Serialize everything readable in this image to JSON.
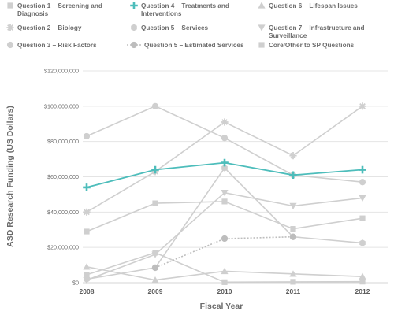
{
  "chart_data": {
    "type": "line",
    "title": "",
    "xlabel": "Fiscal Year",
    "ylabel": "ASD Research Funding (US Dollars)",
    "x": [
      "2008",
      "2009",
      "2010",
      "2011",
      "2012"
    ],
    "ylim": [
      0,
      120000000
    ],
    "yticks": [
      {
        "value": 0,
        "label": "$0"
      },
      {
        "value": 20000000,
        "label": "$20,000,000"
      },
      {
        "value": 40000000,
        "label": "$40,000,000"
      },
      {
        "value": 60000000,
        "label": "$60,000,000"
      },
      {
        "value": 80000000,
        "label": "$80,000,000"
      },
      {
        "value": 100000000,
        "label": "$100,000,000"
      },
      {
        "value": 120000000,
        "label": "$120,000,000"
      }
    ],
    "grid": true,
    "legend_position": "top",
    "series": [
      {
        "name": "Question 1 – Screening and Diagnosis",
        "marker": "square",
        "color": "#cfcfcf",
        "dashed": false,
        "values": [
          4500000,
          17000000,
          300000,
          500000,
          600000
        ]
      },
      {
        "name": "Question 2 – Biology",
        "marker": "asterisk",
        "color": "#cfcfcf",
        "dashed": false,
        "values": [
          40000000,
          63000000,
          91000000,
          72000000,
          100000000
        ]
      },
      {
        "name": "Question 3 – Risk Factors",
        "marker": "circle",
        "color": "#cfcfcf",
        "dashed": false,
        "values": [
          83000000,
          100000000,
          82000000,
          61000000,
          57000000
        ]
      },
      {
        "name": "Question 4 – Treatments and Interventions",
        "marker": "plus",
        "color": "#4dbdbb",
        "dashed": false,
        "values": [
          54000000,
          64000000,
          68000000,
          61000000,
          64000000
        ]
      },
      {
        "name": "Question 5 – Services",
        "marker": "hexagon",
        "color": "#cfcfcf",
        "dashed": false,
        "values": [
          2000000,
          8500000,
          65000000,
          26000000,
          22500000
        ]
      },
      {
        "name": "Question 5 – Estimated Services",
        "marker": "circle",
        "color": "#bdbdbd",
        "dashed": true,
        "values": [
          null,
          8500000,
          25000000,
          26000000,
          null
        ]
      },
      {
        "name": "Question 6 – Lifespan Issues",
        "marker": "triangle-up",
        "color": "#cfcfcf",
        "dashed": false,
        "values": [
          9000000,
          1500000,
          6500000,
          5000000,
          3500000
        ]
      },
      {
        "name": "Question 7 – Infrastructure and Surveillance",
        "marker": "triangle-down",
        "color": "#cfcfcf",
        "dashed": false,
        "values": [
          1500000,
          16000000,
          51000000,
          43500000,
          48000000
        ]
      },
      {
        "name": "Core/Other to SP Questions",
        "marker": "square",
        "color": "#cfcfcf",
        "dashed": false,
        "values": [
          29000000,
          45000000,
          46000000,
          30500000,
          36500000
        ]
      }
    ],
    "legend": [
      {
        "series": 0,
        "lines": [
          "Question 1 – Screening and",
          "Diagnosis"
        ]
      },
      {
        "series": 3,
        "lines": [
          "Question 4 – Treatments and",
          "Interventions"
        ]
      },
      {
        "series": 6,
        "lines": [
          "Question 6 – Lifespan Issues"
        ]
      },
      {
        "series": 1,
        "lines": [
          "Question 2 – Biology"
        ]
      },
      {
        "series": 4,
        "lines": [
          "Question 5 – Services"
        ]
      },
      {
        "series": 7,
        "lines": [
          "Question 7 – Infrastructure and",
          "Surveillance"
        ]
      },
      {
        "series": 2,
        "lines": [
          "Question 3 – Risk Factors"
        ]
      },
      {
        "series": 5,
        "lines": [
          "Question 5 – Estimated Services"
        ]
      },
      {
        "series": 8,
        "lines": [
          "Core/Other to SP Questions"
        ]
      }
    ]
  }
}
